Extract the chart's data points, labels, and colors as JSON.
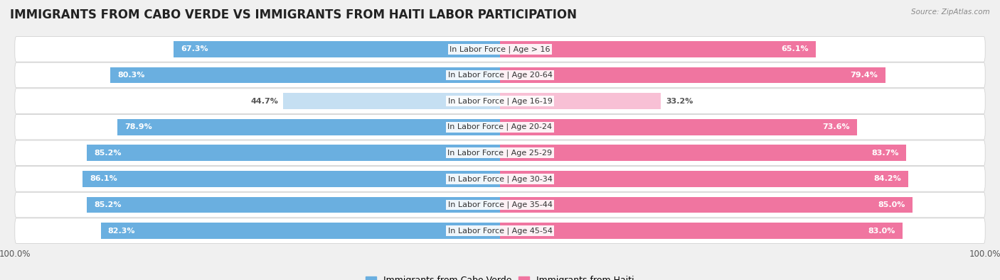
{
  "title": "IMMIGRANTS FROM CABO VERDE VS IMMIGRANTS FROM HAITI LABOR PARTICIPATION",
  "source": "Source: ZipAtlas.com",
  "categories": [
    "In Labor Force | Age > 16",
    "In Labor Force | Age 20-64",
    "In Labor Force | Age 16-19",
    "In Labor Force | Age 20-24",
    "In Labor Force | Age 25-29",
    "In Labor Force | Age 30-34",
    "In Labor Force | Age 35-44",
    "In Labor Force | Age 45-54"
  ],
  "cabo_verde_values": [
    67.3,
    80.3,
    44.7,
    78.9,
    85.2,
    86.1,
    85.2,
    82.3
  ],
  "haiti_values": [
    65.1,
    79.4,
    33.2,
    73.6,
    83.7,
    84.2,
    85.0,
    83.0
  ],
  "cabo_verde_color": "#6aafe0",
  "cabo_verde_color_light": "#c5dff2",
  "haiti_color": "#f075a0",
  "haiti_color_light": "#f8c0d5",
  "max_value": 100.0,
  "bg_color": "#f0f0f0",
  "title_fontsize": 12,
  "value_fontsize": 8,
  "cat_fontsize": 8,
  "tick_fontsize": 8.5,
  "legend_fontsize": 9
}
